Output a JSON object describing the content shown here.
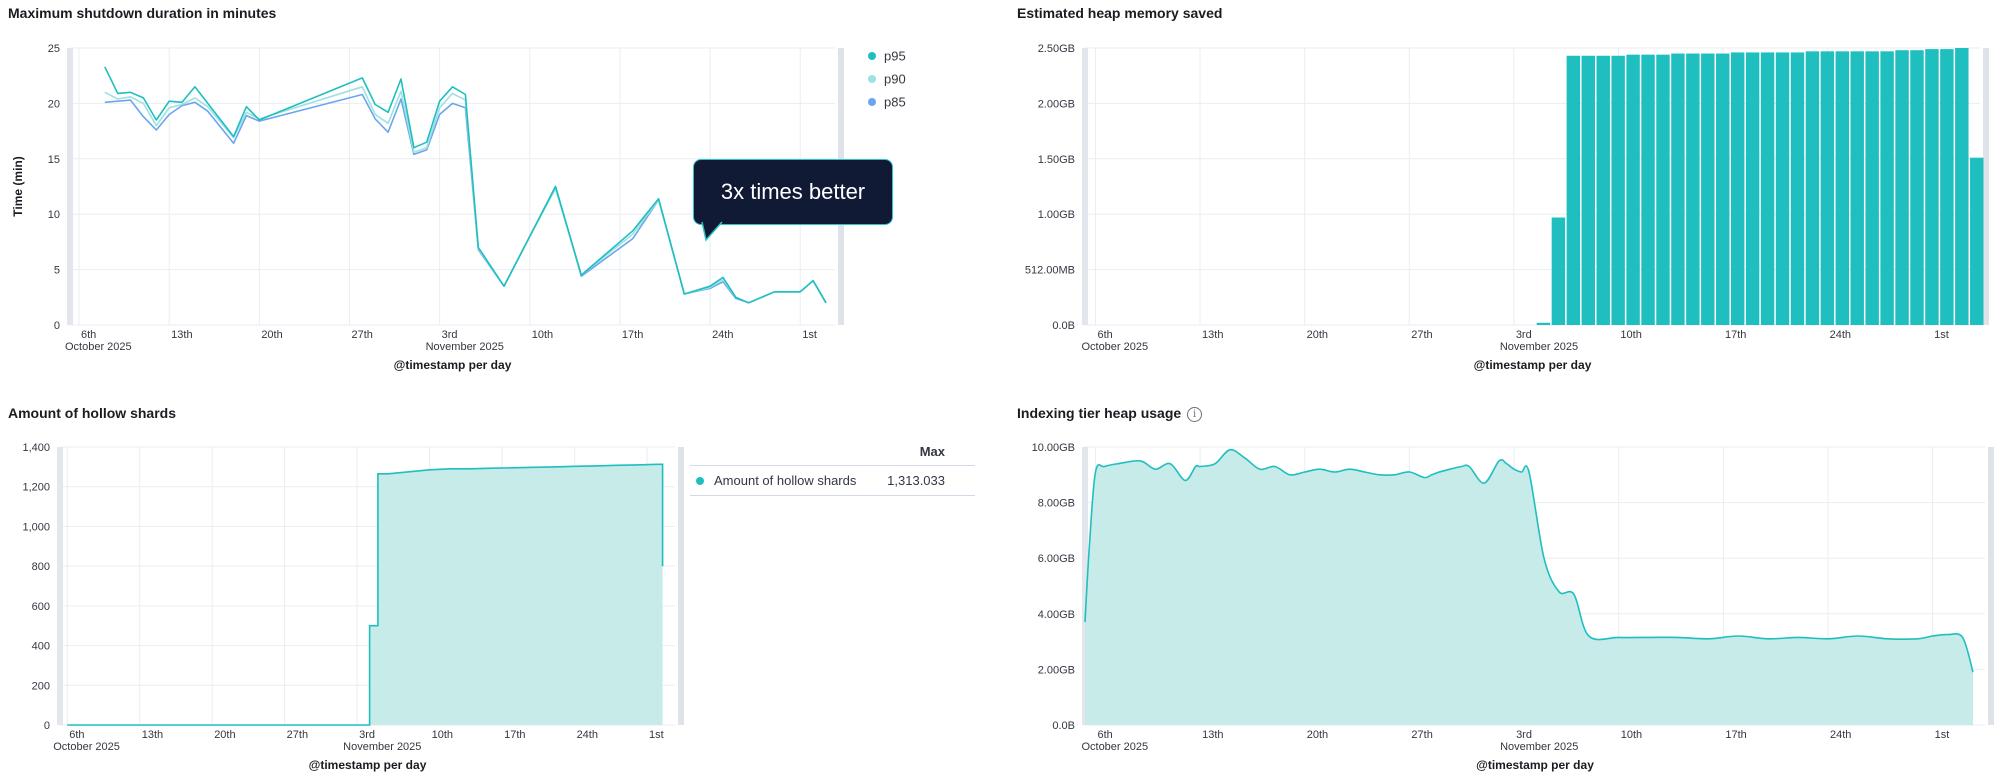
{
  "colors": {
    "teal": "#1fbfbf",
    "teal_light": "#9fe1e1",
    "blue": "#6aa6ee",
    "area_fill": "#c6ebe9",
    "grid": "#e9edf3",
    "callout_bg": "#101a35"
  },
  "x_axis_ticks": [
    {
      "day": 5,
      "label": "6th",
      "sub": "October 2025"
    },
    {
      "day": 12,
      "label": "13th",
      "sub": ""
    },
    {
      "day": 19,
      "label": "20th",
      "sub": ""
    },
    {
      "day": 26,
      "label": "27th",
      "sub": ""
    },
    {
      "day": 33,
      "label": "3rd",
      "sub": "November 2025"
    },
    {
      "day": 40,
      "label": "10th",
      "sub": ""
    },
    {
      "day": 47,
      "label": "17th",
      "sub": ""
    },
    {
      "day": 54,
      "label": "24th",
      "sub": ""
    },
    {
      "day": 61,
      "label": "1st",
      "sub": ""
    }
  ],
  "chart_data": [
    {
      "id": "shutdown",
      "type": "line",
      "title": "Maximum shutdown duration in minutes",
      "xlabel": "@timestamp per day",
      "ylabel": "Time (min)",
      "ylim": [
        0,
        25
      ],
      "yticks": [
        0,
        5,
        10,
        15,
        20,
        25
      ],
      "ytick_labels": [
        "0",
        "5",
        "10",
        "15",
        "20",
        "25"
      ],
      "xlim": [
        4.3,
        63.7
      ],
      "legend_position": "right",
      "annotation": "3x times better",
      "series": [
        {
          "name": "p95",
          "color": "#1fbfbf",
          "x": [
            7,
            8,
            9,
            10,
            11,
            12,
            13,
            14,
            15,
            17,
            18,
            19,
            27,
            28,
            29,
            30,
            31,
            32,
            33,
            34,
            35,
            36,
            38,
            40,
            42,
            44,
            48,
            50,
            52,
            54,
            55,
            56,
            57,
            58,
            59,
            60,
            61,
            62,
            63
          ],
          "y": [
            23.3,
            20.9,
            21.0,
            20.5,
            18.5,
            20.2,
            20.1,
            21.5,
            20.0,
            17.0,
            19.7,
            18.5,
            22.3,
            19.9,
            19.2,
            22.2,
            16.0,
            16.5,
            20.2,
            21.5,
            20.8,
            7.0,
            3.5,
            8.0,
            12.5,
            4.5,
            8.5,
            11.4,
            2.8,
            3.5,
            4.3,
            2.5,
            2.0,
            2.5,
            3.0,
            3.0,
            3.0,
            4.0,
            2.0
          ]
        },
        {
          "name": "p90",
          "color": "#9fe1e1",
          "x": [
            7,
            8,
            9,
            10,
            11,
            12,
            13,
            14,
            15,
            17,
            18,
            19,
            27,
            28,
            29,
            30,
            31,
            32,
            33,
            34,
            35,
            36,
            38,
            40,
            42,
            44,
            48,
            50,
            52,
            54,
            55,
            56,
            57,
            58,
            59,
            60,
            61,
            62,
            63
          ],
          "y": [
            21.0,
            20.4,
            20.6,
            20.0,
            18.0,
            19.6,
            19.9,
            20.5,
            19.7,
            16.9,
            19.2,
            18.6,
            21.5,
            19.0,
            18.2,
            21.1,
            15.6,
            16.0,
            19.6,
            20.9,
            20.3,
            6.9,
            3.5,
            8.0,
            12.3,
            4.5,
            8.2,
            11.3,
            2.8,
            3.4,
            4.1,
            2.5,
            2.0,
            2.5,
            3.0,
            3.0,
            3.0,
            4.0,
            2.0
          ]
        },
        {
          "name": "p85",
          "color": "#6aa6ee",
          "x": [
            7,
            8,
            9,
            10,
            11,
            12,
            13,
            14,
            15,
            17,
            18,
            19,
            27,
            28,
            29,
            30,
            31,
            32,
            33,
            34,
            35,
            36,
            38,
            40,
            42,
            44,
            48,
            50,
            52,
            54,
            55,
            56,
            57,
            58,
            59,
            60,
            61,
            62,
            63
          ],
          "y": [
            20.1,
            20.2,
            20.3,
            18.8,
            17.6,
            19.0,
            19.8,
            20.1,
            19.3,
            16.4,
            18.9,
            18.4,
            20.8,
            18.6,
            17.4,
            20.4,
            15.4,
            15.8,
            19.0,
            20.0,
            19.6,
            6.8,
            3.5,
            8.0,
            12.5,
            4.4,
            7.8,
            11.3,
            2.8,
            3.3,
            3.9,
            2.4,
            2.0,
            2.5,
            3.0,
            3.0,
            3.0,
            4.0,
            2.0
          ]
        }
      ]
    },
    {
      "id": "heap_saved",
      "type": "bar",
      "title": "Estimated heap memory saved",
      "xlabel": "@timestamp per day",
      "ylabel": "",
      "ylim": [
        0,
        2.5
      ],
      "yticks": [
        0,
        0.5,
        1.0,
        1.5,
        2.0,
        2.5
      ],
      "ytick_labels": [
        "0.0B",
        "512.00MB",
        "1.00GB",
        "1.50GB",
        "2.00GB",
        "2.50GB"
      ],
      "xlim": [
        4.3,
        64.2
      ],
      "series": [
        {
          "name": "",
          "color": "#1fbfbf",
          "x": [
            35,
            36,
            37,
            38,
            39,
            40,
            41,
            42,
            43,
            44,
            45,
            46,
            47,
            48,
            49,
            50,
            51,
            52,
            53,
            54,
            55,
            56,
            57,
            58,
            59,
            60,
            61,
            62,
            63,
            64
          ],
          "y": [
            0.02,
            0.97,
            2.43,
            2.43,
            2.43,
            2.43,
            2.44,
            2.44,
            2.44,
            2.45,
            2.45,
            2.45,
            2.45,
            2.46,
            2.46,
            2.46,
            2.46,
            2.46,
            2.47,
            2.47,
            2.47,
            2.47,
            2.47,
            2.47,
            2.48,
            2.48,
            2.49,
            2.49,
            2.5,
            1.51
          ]
        }
      ]
    },
    {
      "id": "hollow_shards",
      "type": "area",
      "title": "Amount of hollow shards",
      "xlabel": "@timestamp per day",
      "ylabel": "",
      "ylim": [
        0,
        1400
      ],
      "yticks": [
        0,
        200,
        400,
        600,
        800,
        1000,
        1200,
        1400
      ],
      "ytick_labels": [
        "0",
        "200",
        "400",
        "600",
        "800",
        "1,000",
        "1,200",
        "1,400"
      ],
      "xlim": [
        4.3,
        63.7
      ],
      "legend_header": "Max",
      "series": [
        {
          "name": "Amount of hollow shards",
          "max_label": "1,313.033",
          "color": "#1fbfbf",
          "x": [
            5,
            34.2,
            34.2,
            35,
            35,
            36,
            37,
            38,
            40,
            42,
            44,
            46,
            48,
            50,
            52,
            54,
            56,
            58,
            60,
            62,
            62.5,
            62.5
          ],
          "y": [
            0,
            0,
            500,
            500,
            1265,
            1265,
            1270,
            1275,
            1285,
            1290,
            1290,
            1293,
            1295,
            1298,
            1300,
            1303,
            1305,
            1308,
            1310,
            1313,
            1313,
            800
          ]
        }
      ]
    },
    {
      "id": "indexing_heap",
      "type": "area",
      "title": "Indexing tier heap usage",
      "xlabel": "@timestamp per day",
      "ylabel": "",
      "ylim": [
        0,
        10
      ],
      "yticks": [
        0,
        2,
        4,
        6,
        8,
        10
      ],
      "ytick_labels": [
        "0.0B",
        "2.00GB",
        "4.00GB",
        "6.00GB",
        "8.00GB",
        "10.00GB"
      ],
      "xlim": [
        4.3,
        64.5
      ],
      "series": [
        {
          "name": "",
          "color": "#1fbfbf",
          "x": [
            4.3,
            4.6,
            5.0,
            5.6,
            6.5,
            8,
            9,
            10,
            11,
            11.7,
            12,
            13,
            14,
            15,
            16,
            17,
            18,
            19,
            20,
            21,
            22,
            23,
            24,
            25,
            26,
            27,
            27.5,
            28,
            28.7,
            29.5,
            30,
            31,
            32,
            32.5,
            33,
            33.5,
            34,
            35,
            36,
            37,
            38,
            40,
            42,
            44,
            46,
            48,
            50,
            52,
            54,
            56,
            58,
            60,
            61,
            62,
            63,
            63.7
          ],
          "y": [
            3.7,
            6.5,
            9.1,
            9.3,
            9.4,
            9.5,
            9.2,
            9.4,
            8.8,
            9.3,
            9.3,
            9.4,
            9.9,
            9.6,
            9.2,
            9.3,
            9.0,
            9.1,
            9.2,
            9.1,
            9.2,
            9.1,
            9.0,
            9.0,
            9.1,
            8.9,
            9.0,
            9.1,
            9.2,
            9.3,
            9.3,
            8.7,
            9.5,
            9.4,
            9.2,
            9.1,
            9.1,
            6.0,
            4.8,
            4.7,
            3.2,
            3.15,
            3.15,
            3.15,
            3.1,
            3.2,
            3.1,
            3.15,
            3.1,
            3.2,
            3.1,
            3.1,
            3.2,
            3.25,
            3.15,
            1.9
          ]
        }
      ]
    }
  ]
}
